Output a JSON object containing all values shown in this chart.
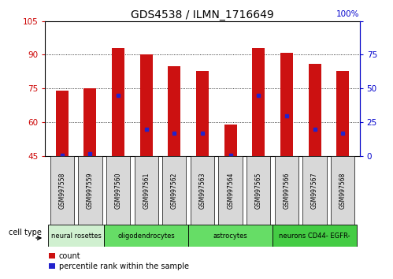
{
  "title": "GDS4538 / ILMN_1716649",
  "samples": [
    "GSM997558",
    "GSM997559",
    "GSM997560",
    "GSM997561",
    "GSM997562",
    "GSM997563",
    "GSM997564",
    "GSM997565",
    "GSM997566",
    "GSM997567",
    "GSM997568"
  ],
  "counts": [
    74,
    75,
    93,
    90,
    85,
    83,
    59,
    93,
    91,
    86,
    83
  ],
  "percentile_ranks": [
    1,
    2,
    45,
    20,
    17,
    17,
    1,
    45,
    30,
    20,
    17
  ],
  "bar_bottom": 45,
  "ylim_left": [
    45,
    105
  ],
  "ylim_right": [
    0,
    100
  ],
  "yticks_left": [
    45,
    60,
    75,
    90,
    105
  ],
  "yticks_right": [
    0,
    25,
    50,
    75,
    100
  ],
  "bar_color": "#cc1111",
  "percentile_color": "#2222cc",
  "cell_type_groups": [
    {
      "label": "neural rosettes",
      "indices": [
        0,
        1
      ],
      "color": "#d0f0d0"
    },
    {
      "label": "oligodendrocytes",
      "indices": [
        2,
        3,
        4
      ],
      "color": "#66dd66"
    },
    {
      "label": "astrocytes",
      "indices": [
        5,
        6,
        7
      ],
      "color": "#66dd66"
    },
    {
      "label": "neurons CD44- EGFR-",
      "indices": [
        8,
        9,
        10
      ],
      "color": "#44cc44"
    }
  ],
  "legend_count_label": "count",
  "legend_percentile_label": "percentile rank within the sample",
  "cell_type_label": "cell type",
  "right_axis_color": "#0000cc",
  "left_axis_color": "#cc0000",
  "pct_label": "100%",
  "grid_ticks": [
    60,
    75,
    90
  ]
}
